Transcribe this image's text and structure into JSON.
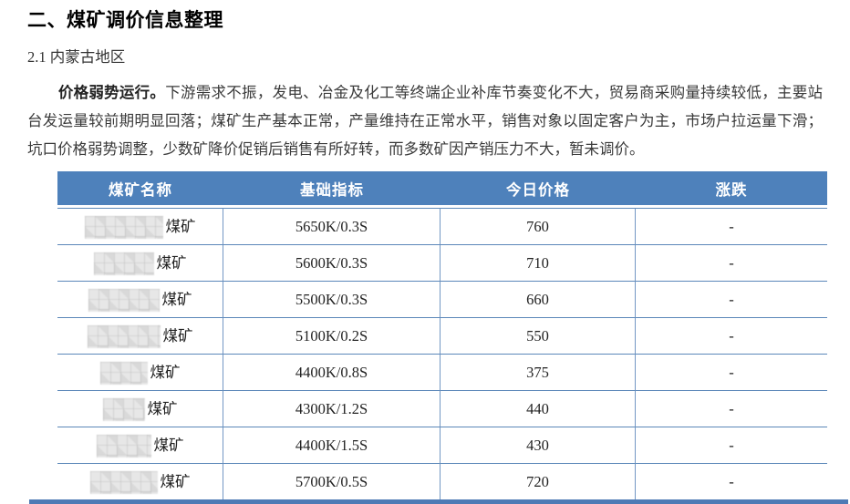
{
  "page": {
    "section_title": "二、煤矿调价信息整理",
    "subsection_title": "2.1 内蒙古地区",
    "paragraph_lead": "价格弱势运行。",
    "paragraph_body": "下游需求不振，发电、冶金及化工等终端企业补库节奏变化不大，贸易商采购量持续较低，主要站台发运量较前期明显回落；煤矿生产基本正常，产量维持在正常水平，销售对象以固定客户为主，市场户拉运量下滑；坑口价格弱势调整，少数矿降价促销后销售有所好转，而多数矿因产销压力不大，暂未调价。"
  },
  "colors": {
    "header_bg": "#4e81bb",
    "grid_border": "#5b87b9",
    "bottom_rule": "#4e7ab5"
  },
  "table": {
    "columns": [
      "煤矿名称",
      "基础指标",
      "今日价格",
      "涨跌"
    ],
    "rows": [
      {
        "name_suffix": "煤矿",
        "indicator": "5650K/0.3S",
        "price": "760",
        "change": "-"
      },
      {
        "name_suffix": "煤矿",
        "indicator": "5600K/0.3S",
        "price": "710",
        "change": "-"
      },
      {
        "name_suffix": "煤矿",
        "indicator": "5500K/0.3S",
        "price": "660",
        "change": "-"
      },
      {
        "name_suffix": "煤矿",
        "indicator": "5100K/0.2S",
        "price": "550",
        "change": "-"
      },
      {
        "name_suffix": "煤矿",
        "indicator": "4400K/0.8S",
        "price": "375",
        "change": "-"
      },
      {
        "name_suffix": "煤矿",
        "indicator": "4300K/1.2S",
        "price": "440",
        "change": "-"
      },
      {
        "name_suffix": "煤矿",
        "indicator": "4400K/1.5S",
        "price": "430",
        "change": "-"
      },
      {
        "name_suffix": "煤矿",
        "indicator": "5700K/0.5S",
        "price": "720",
        "change": "-"
      }
    ]
  }
}
